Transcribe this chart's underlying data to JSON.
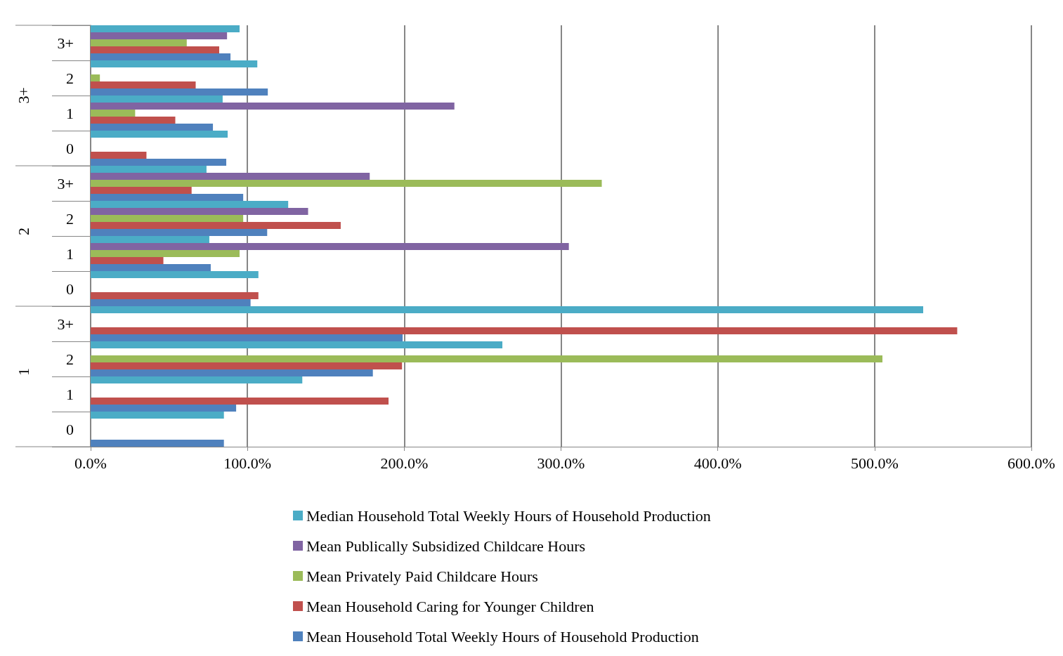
{
  "chart_data": {
    "type": "bar",
    "orientation": "horizontal",
    "categories": [
      "3+",
      "2",
      "1",
      "0",
      "3+",
      "2",
      "1",
      "0",
      "3+",
      "2",
      "1",
      "0"
    ],
    "annotations": [
      "3+",
      "2",
      "1"
    ],
    "series": [
      {
        "name": "Median Household Total Weekly Hours of Household Production",
        "color": "#4bacc6",
        "values": [
          95,
          106.3,
          84.2,
          87.4,
          73.9,
          126,
          75.7,
          107,
          531,
          262.6,
          135,
          85
        ]
      },
      {
        "name": "Mean Publically Subsidized Childcare Hours",
        "color": "#8064a2",
        "values": [
          87,
          null,
          232,
          null,
          178,
          138.7,
          305,
          null,
          null,
          null,
          null,
          null
        ]
      },
      {
        "name": "Mean Privately Paid Childcare Hours",
        "color": "#9bbb59",
        "values": [
          61.3,
          5.9,
          28.4,
          null,
          326,
          97.3,
          95,
          null,
          null,
          505,
          null,
          null
        ]
      },
      {
        "name": "Mean Household Caring for Younger Children",
        "color": "#c0504d",
        "values": [
          82,
          67,
          54,
          35.6,
          64.4,
          159.5,
          46.4,
          107,
          552.7,
          198.6,
          190,
          null
        ]
      },
      {
        "name": "Mean Household Total Weekly Hours of Household Production",
        "color": "#4f81bd",
        "values": [
          89.2,
          113,
          78,
          86.5,
          97.3,
          112.6,
          76.6,
          102,
          199,
          180,
          92.8,
          85
        ]
      }
    ],
    "xlim": [
      0,
      600
    ],
    "xticks": [
      {
        "value": 0,
        "label": "0.0%"
      },
      {
        "value": 100,
        "label": "100.0%"
      },
      {
        "value": 200,
        "label": "200.0%"
      },
      {
        "value": 300,
        "label": "300.0%"
      },
      {
        "value": 400,
        "label": "400.0%"
      },
      {
        "value": 500,
        "label": "500.0%"
      },
      {
        "value": 600,
        "label": "600.0%"
      }
    ],
    "grid": "x",
    "legend": "bottom"
  }
}
